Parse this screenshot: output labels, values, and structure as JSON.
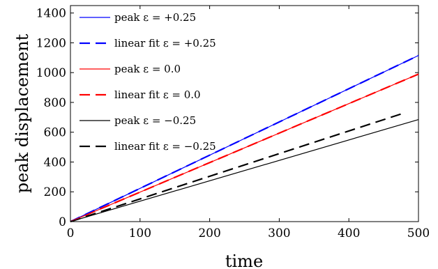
{
  "chart_data": {
    "type": "line",
    "xlabel": "time",
    "ylabel": "peak displacement",
    "xlim": [
      0,
      500
    ],
    "ylim": [
      0,
      1450
    ],
    "xticks": [
      0,
      100,
      200,
      300,
      400,
      500
    ],
    "yticks": [
      0,
      200,
      400,
      600,
      800,
      1000,
      1200,
      1400
    ],
    "grid": false,
    "legend_position": "top-left",
    "series": [
      {
        "name": "peak ε = +0.25",
        "style": "solid",
        "color": "#0000ff",
        "x": [
          0,
          500
        ],
        "y": [
          0,
          1115
        ]
      },
      {
        "name": "linear fit ε = +0.25",
        "style": "dashed",
        "color": "#0000ff",
        "x": [
          0,
          500
        ],
        "y": [
          0,
          1115
        ]
      },
      {
        "name": "peak ε = 0.0",
        "style": "solid",
        "color": "#ff0000",
        "x": [
          0,
          500
        ],
        "y": [
          0,
          990
        ]
      },
      {
        "name": "linear fit ε = 0.0",
        "style": "dashed",
        "color": "#ff0000",
        "x": [
          0,
          500
        ],
        "y": [
          0,
          990
        ]
      },
      {
        "name": "peak ε = −0.25",
        "style": "solid",
        "color": "#000000",
        "x": [
          0,
          500
        ],
        "y": [
          0,
          685
        ]
      },
      {
        "name": "linear fit ε = −0.25",
        "style": "dashed",
        "color": "#000000",
        "x": [
          0,
          480
        ],
        "y": [
          0,
          730
        ]
      }
    ]
  }
}
